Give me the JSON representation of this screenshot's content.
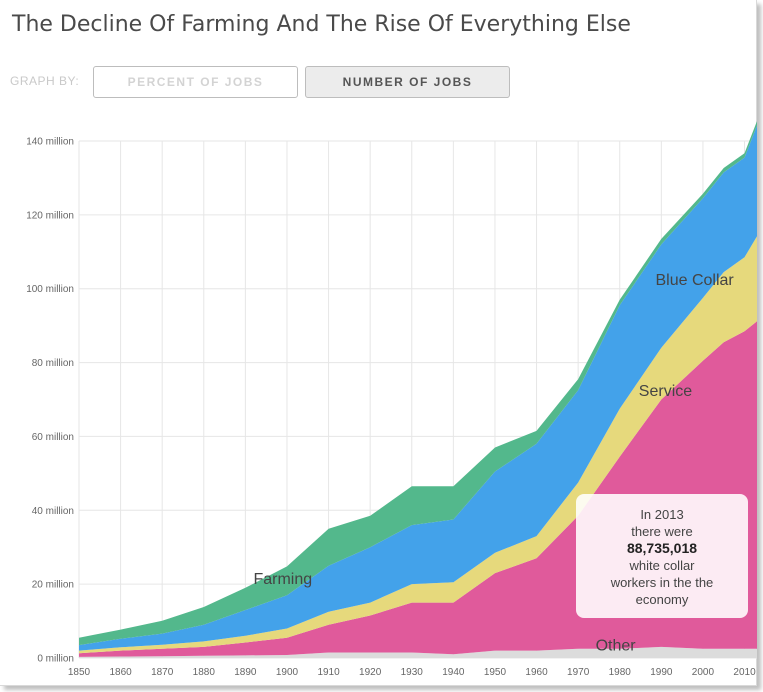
{
  "title": "The Decline Of Farming And The Rise Of Everything Else",
  "controls": {
    "graph_by_label": "GRAPH BY:",
    "percent_label": "PERCENT OF JOBS",
    "number_label": "NUMBER OF JOBS",
    "selected": "NUMBER OF JOBS"
  },
  "callout": {
    "line1": "In 2013",
    "line2": "there were",
    "value": "88,735,018",
    "line3": "white collar",
    "line4": "workers in the the",
    "line5": "economy"
  },
  "chart_data": {
    "type": "area",
    "stacked": true,
    "x": [
      1850,
      1860,
      1870,
      1880,
      1890,
      1900,
      1910,
      1920,
      1930,
      1940,
      1950,
      1960,
      1970,
      1980,
      1990,
      2000,
      2005,
      2010,
      2013
    ],
    "series": [
      {
        "name": "Other",
        "color": "#dcdcdc",
        "values": [
          0.3,
          0.4,
          0.5,
          0.6,
          0.7,
          0.8,
          1.5,
          1.5,
          1.5,
          1.0,
          2.0,
          2.0,
          2.5,
          2.5,
          3.0,
          2.5,
          2.5,
          2.5,
          2.5
        ]
      },
      {
        "name": "",
        "color": "#e05a9b",
        "values": [
          1.0,
          1.6,
          2.0,
          2.4,
          3.5,
          4.7,
          7.5,
          10.0,
          13.5,
          14.0,
          21.0,
          25.0,
          36.0,
          52.0,
          67.0,
          78.0,
          83.0,
          86.0,
          88.7
        ]
      },
      {
        "name": "Service",
        "color": "#e6d97c",
        "values": [
          0.7,
          0.9,
          1.1,
          1.5,
          1.8,
          2.5,
          3.5,
          3.5,
          5.0,
          5.5,
          5.5,
          6.0,
          9.0,
          13.0,
          14.0,
          17.0,
          19.0,
          20.0,
          23.0
        ]
      },
      {
        "name": "Blue Collar",
        "color": "#43a2ea",
        "values": [
          1.5,
          2.3,
          3.0,
          4.5,
          7.0,
          9.0,
          12.5,
          15.0,
          16.0,
          17.0,
          22.0,
          25.0,
          25.0,
          28.0,
          28.0,
          27.0,
          27.0,
          27.0,
          30.0
        ]
      },
      {
        "name": "Farming",
        "color": "#53b88c",
        "values": [
          2.0,
          2.5,
          3.5,
          4.8,
          6.0,
          7.8,
          10.0,
          8.5,
          10.5,
          9.0,
          6.5,
          3.5,
          3.0,
          1.5,
          1.5,
          1.2,
          1.2,
          1.2,
          1.2
        ]
      }
    ],
    "xlabel": "",
    "ylabel": "",
    "xlim": [
      1850,
      2013
    ],
    "ylim": [
      0,
      140
    ],
    "y_ticks": [
      0,
      20,
      40,
      60,
      80,
      100,
      120,
      140
    ],
    "y_tick_labels": [
      "0 million",
      "20 million",
      "40 million",
      "60 million",
      "80 million",
      "100 million",
      "120 million",
      "140 million"
    ],
    "x_ticks": [
      1850,
      1860,
      1870,
      1880,
      1890,
      1900,
      1910,
      1920,
      1930,
      1940,
      1950,
      1960,
      1970,
      1980,
      1990,
      2000,
      2010
    ],
    "x_tick_labels": [
      "1850",
      "1860",
      "1870",
      "1880",
      "1890",
      "1900",
      "1910",
      "1920",
      "1930",
      "1940",
      "1950",
      "1960",
      "1970",
      "1980",
      "1990",
      "2000",
      "2010"
    ],
    "grid": true,
    "annotations": [
      {
        "text": "Farming",
        "x": 1899,
        "y": 20
      },
      {
        "text": "Blue Collar",
        "x": 1998,
        "y": 101
      },
      {
        "text": "Service",
        "x": 1991,
        "y": 71
      },
      {
        "text": "Other",
        "x": 1979,
        "y": 2
      }
    ]
  }
}
